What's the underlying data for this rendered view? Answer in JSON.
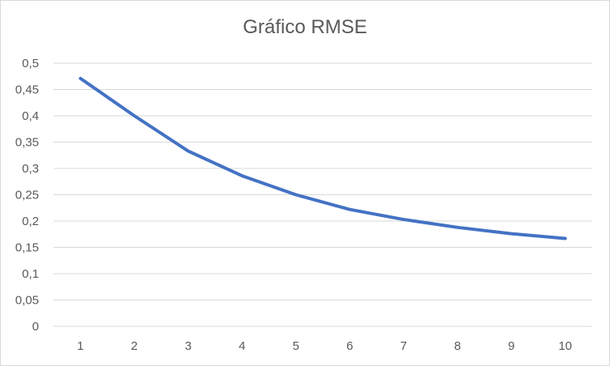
{
  "chart_data": {
    "type": "line",
    "title": "Gráfico RMSE",
    "xlabel": "",
    "ylabel": "",
    "categories": [
      "1",
      "2",
      "3",
      "4",
      "5",
      "6",
      "7",
      "8",
      "9",
      "10"
    ],
    "series": [
      {
        "values": [
          0.471,
          0.4,
          0.333,
          0.286,
          0.25,
          0.222,
          0.203,
          0.188,
          0.176,
          0.167
        ],
        "color": "#4472c4"
      }
    ],
    "ylim": [
      0,
      0.5
    ],
    "yticks": [
      "0",
      "0,05",
      "0,1",
      "0,15",
      "0,2",
      "0,25",
      "0,3",
      "0,35",
      "0,4",
      "0,45",
      "0,5"
    ],
    "grid": true,
    "legend": "none"
  }
}
